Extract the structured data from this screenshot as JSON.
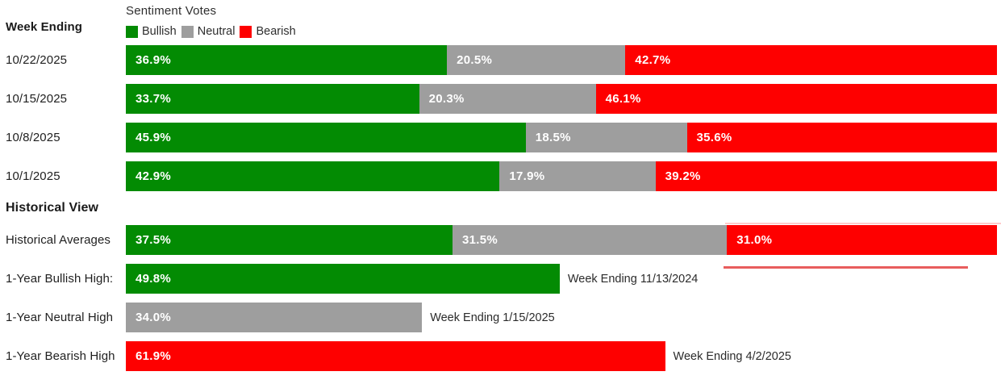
{
  "header": {
    "left_title": "Week Ending",
    "chart_title": "Sentiment Votes"
  },
  "sections": {
    "historical_title": "Historical View"
  },
  "colors": {
    "series": {
      "Bullish": "#038b03",
      "Neutral": "#9e9e9e",
      "Bearish": "#fe0000"
    },
    "bar_label_text": "#ffffff",
    "text": "#1f1f1f"
  },
  "chart_data": {
    "type": "bar",
    "orientation": "horizontal_stacked",
    "unit": "percent",
    "title": "Sentiment Votes",
    "legend_position": "top",
    "legend_entries": [
      "Bullish",
      "Neutral",
      "Bearish"
    ],
    "xlim": [
      0,
      100
    ],
    "grid": false,
    "categories": [
      "10/22/2025",
      "10/15/2025",
      "10/8/2025",
      "10/1/2025"
    ],
    "series": [
      {
        "name": "Bullish",
        "values": [
          36.9,
          33.7,
          45.9,
          42.9
        ]
      },
      {
        "name": "Neutral",
        "values": [
          20.5,
          20.3,
          18.5,
          17.9
        ]
      },
      {
        "name": "Bearish",
        "values": [
          42.7,
          46.1,
          35.6,
          39.2
        ]
      }
    ],
    "historical": [
      {
        "label": "Historical Averages",
        "bullish": 37.5,
        "neutral": 31.5,
        "bearish": 31.0
      },
      {
        "label": "1-Year Bullish High:",
        "series": "Bullish",
        "value": 49.8,
        "annotation": "Week Ending 11/13/2024"
      },
      {
        "label": "1-Year Neutral High",
        "series": "Neutral",
        "value": 34.0,
        "annotation": "Week Ending 1/15/2025"
      },
      {
        "label": "1-Year Bearish High",
        "series": "Bearish",
        "value": 61.9,
        "annotation": "Week Ending 4/2/2025"
      }
    ]
  }
}
